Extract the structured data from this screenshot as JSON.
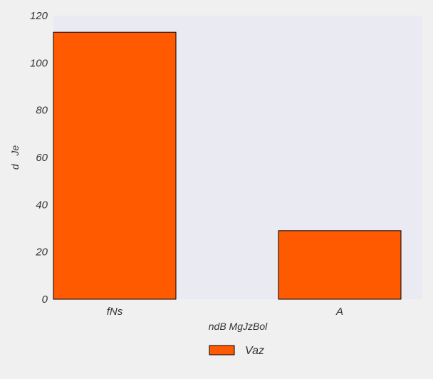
{
  "chart_data": {
    "type": "bar",
    "categories": [
      "fNs",
      "A"
    ],
    "series": [
      {
        "name": "Vaz",
        "values": [
          113,
          29
        ],
        "color": "#ff5a00"
      }
    ],
    "xlabel": "ndB MgJzBol",
    "ylabel": "d   Je",
    "ylim": [
      0,
      120
    ],
    "yticks": [
      0,
      20,
      40,
      60,
      80,
      100,
      120
    ],
    "grid": false,
    "legend": "bottom-center",
    "colors": {
      "page_background": "#f0f0f0",
      "plot_background": "#eaeaf2",
      "bar_edge": "#000000",
      "text": "#333333"
    }
  }
}
